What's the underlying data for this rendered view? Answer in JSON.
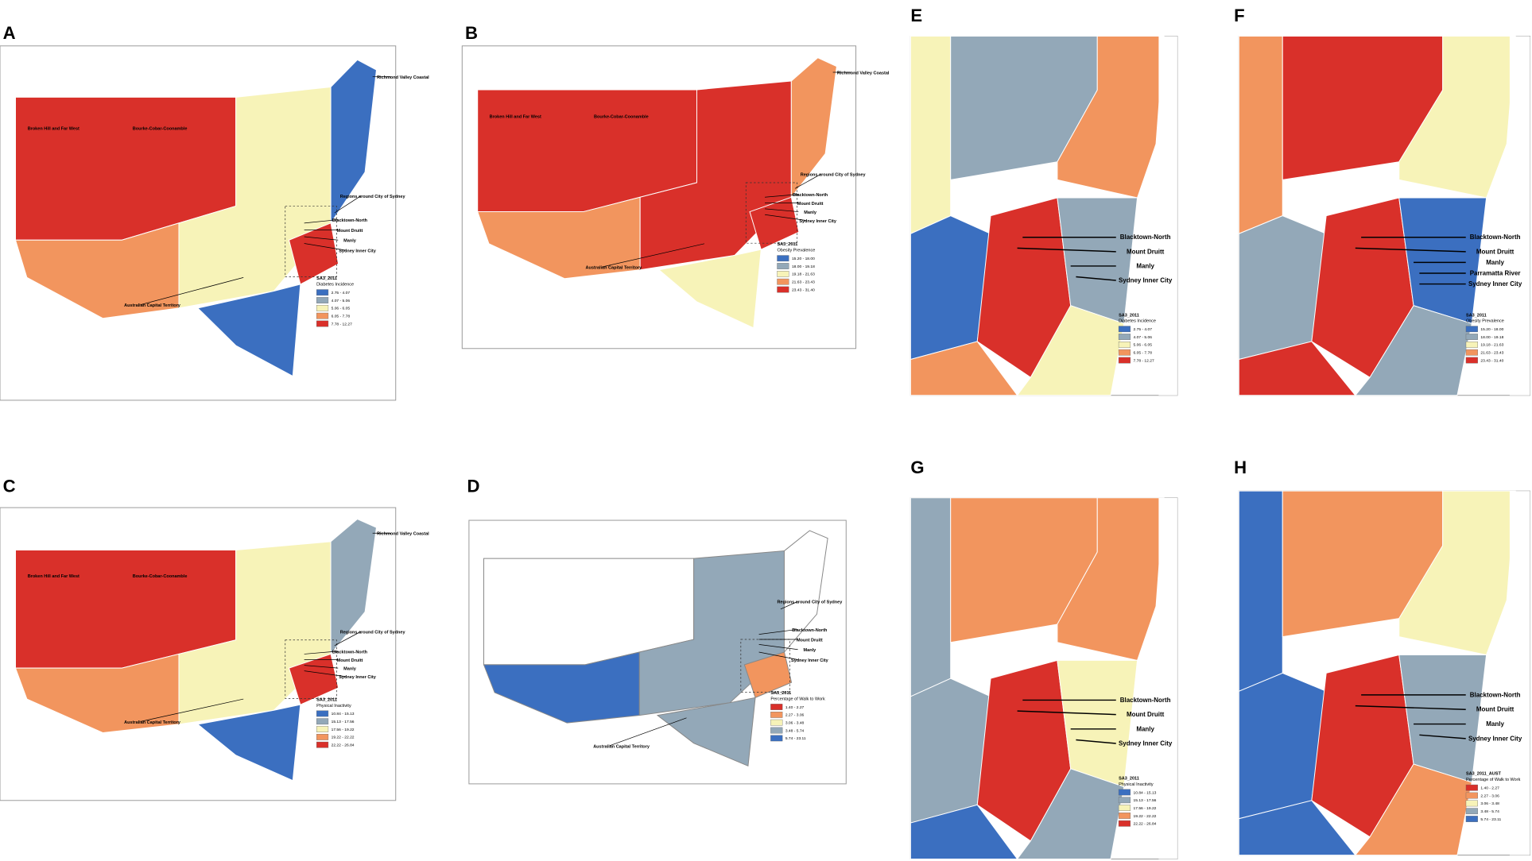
{
  "panels": [
    {
      "letter": "A",
      "labels": [
        "Richmond Valley Coastal",
        "Broken Hill and Far West",
        "Bourke-Cobar-Coonamble",
        "Regions around City of Sydney",
        "Blacktown-North",
        "Mount Druitt",
        "Manly",
        "Sydney Inner City",
        "Australian Capital Territory"
      ],
      "legend": {
        "title": "SA3_2011",
        "subtitle": "Diabetes Incidence",
        "items": [
          "2.75 - 4.07",
          "4.07 - 5.06",
          "5.06 - 6.05",
          "6.05 - 7.78",
          "7.78 - 12.27"
        ],
        "colors": [
          "#3b6fc0",
          "#93a8b8",
          "#f7f3b8",
          "#f2955e",
          "#d9302a"
        ]
      }
    },
    {
      "letter": "B",
      "labels": [
        "Richmond Valley Coastal",
        "Broken Hill and Far West",
        "Bourke-Cobar-Coonamble",
        "Regions around City of Sydney",
        "Blacktown-North",
        "Mount Druitt",
        "Manly",
        "Sydney Inner City",
        "Australian Capital Territory"
      ],
      "legend": {
        "title": "SA3_2011",
        "subtitle": "Obesity Prevalence",
        "items": [
          "15.20 - 18.00",
          "18.00 - 19.18",
          "19.18 - 21.63",
          "21.63 - 23.43",
          "23.43 - 31.40"
        ],
        "colors": [
          "#3b6fc0",
          "#93a8b8",
          "#f7f3b8",
          "#f2955e",
          "#d9302a"
        ]
      }
    },
    {
      "letter": "C",
      "labels": [
        "Richmond Valley Coastal",
        "Broken Hill and Far West",
        "Bourke-Cobar-Coonamble",
        "Regions around City of Sydney",
        "Blacktown-North",
        "Mount Druitt",
        "Manly",
        "Sydney Inner City",
        "Australian Capital Territory"
      ],
      "legend": {
        "title": "SA3_2011",
        "subtitle": "Physical Inactivity",
        "items": [
          "10.84 - 15.13",
          "15.13 - 17.56",
          "17.56 - 19.22",
          "19.22 - 22.22",
          "22.22 - 26.84"
        ],
        "colors": [
          "#3b6fc0",
          "#93a8b8",
          "#f7f3b8",
          "#f2955e",
          "#d9302a"
        ]
      }
    },
    {
      "letter": "D",
      "labels": [
        "Regions around City of Sydney",
        "Blacktown-North",
        "Mount Druitt",
        "Manly",
        "Sydney Inner City",
        "Australian Capital Territory"
      ],
      "legend": {
        "title": "SA3_2011",
        "subtitle": "Percentage of Walk to Work",
        "items": [
          "1.40 - 2.27",
          "2.27 - 3.06",
          "3.06 - 3.48",
          "3.48 - 5.74",
          "5.74 - 23.11"
        ],
        "colors": [
          "#d9302a",
          "#f2955e",
          "#f7f3b8",
          "#93a8b8",
          "#3b6fc0"
        ]
      }
    },
    {
      "letter": "E",
      "labels": [
        "Blacktown-North",
        "Mount Druitt",
        "Manly",
        "Sydney Inner City"
      ],
      "legend": {
        "title": "SA3_2011",
        "subtitle": "Diabetes Incidence",
        "items": [
          "2.75 - 4.07",
          "4.07 - 5.06",
          "5.06 - 6.05",
          "6.05 - 7.78",
          "7.78 - 12.27"
        ],
        "colors": [
          "#3b6fc0",
          "#93a8b8",
          "#f7f3b8",
          "#f2955e",
          "#d9302a"
        ]
      }
    },
    {
      "letter": "F",
      "labels": [
        "Blacktown-North",
        "Mount Druitt",
        "Manly",
        "Parramatta River",
        "Sydney Inner City"
      ],
      "legend": {
        "title": "SA3_2011",
        "subtitle": "Obesity Prevalence",
        "items": [
          "15.20 - 18.00",
          "18.00 - 19.18",
          "19.18 - 21.63",
          "21.63 - 23.43",
          "23.43 - 31.40"
        ],
        "colors": [
          "#3b6fc0",
          "#93a8b8",
          "#f7f3b8",
          "#f2955e",
          "#d9302a"
        ]
      }
    },
    {
      "letter": "G",
      "labels": [
        "Blacktown-North",
        "Mount Druitt",
        "Manly",
        "Sydney Inner City"
      ],
      "legend": {
        "title": "SA3_2011",
        "subtitle": "Physical Inactivity",
        "items": [
          "10.84 - 15.13",
          "15.13 - 17.56",
          "17.56 - 19.22",
          "19.22 - 22.22",
          "22.22 - 26.84"
        ],
        "colors": [
          "#3b6fc0",
          "#93a8b8",
          "#f7f3b8",
          "#f2955e",
          "#d9302a"
        ]
      }
    },
    {
      "letter": "H",
      "labels": [
        "Blacktown-North",
        "Mount Druitt",
        "Manly",
        "Sydney Inner City"
      ],
      "legend": {
        "title": "SA3_2011_AUST",
        "subtitle": "Percentage of Walk to Work",
        "items": [
          "1.40 - 2.27",
          "2.27 - 3.06",
          "3.06 - 3.48",
          "3.48 - 5.74",
          "5.74 - 23.11"
        ],
        "colors": [
          "#d9302a",
          "#f2955e",
          "#f7f3b8",
          "#93a8b8",
          "#3b6fc0"
        ]
      }
    }
  ]
}
